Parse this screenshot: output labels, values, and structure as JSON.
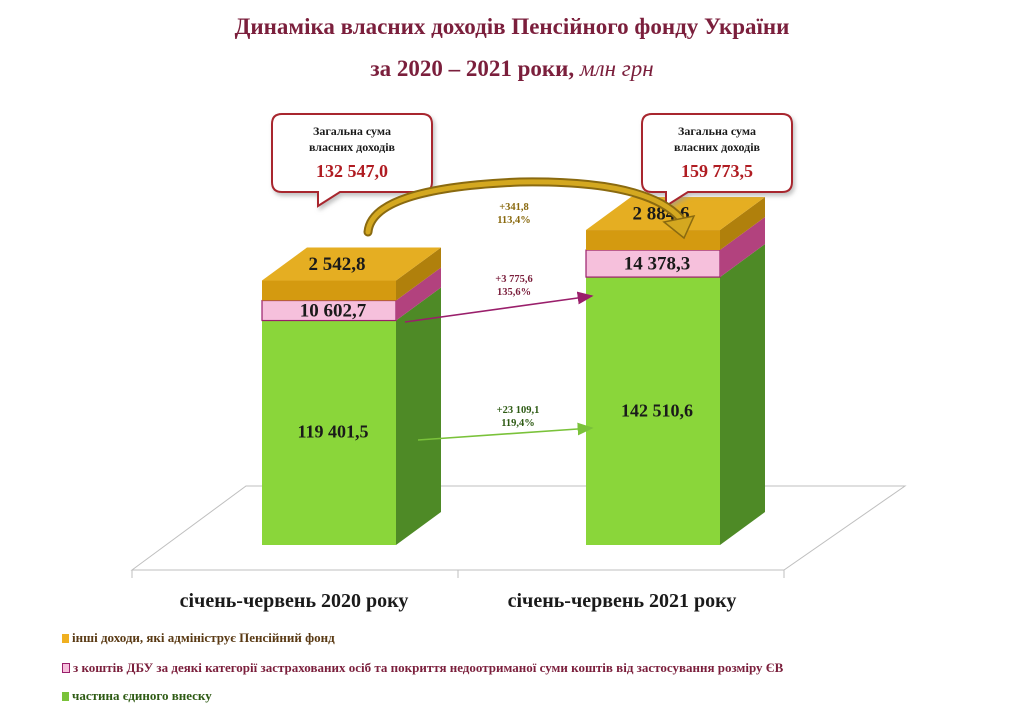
{
  "title": "Динаміка власних доходів Пенсійного фонду України",
  "subtitle_main": "за 2020 – 2021 роки,",
  "subtitle_unit": "млн грн",
  "chart_data": {
    "type": "bar",
    "stacked": true,
    "categories": [
      "січень-червень 2020 року",
      "січень-червень 2021 року"
    ],
    "series": [
      {
        "name": "частина єдиного внеску",
        "values": [
          119401.5,
          142510.6
        ],
        "labels": [
          "119 401,5",
          "142 510,6"
        ],
        "color": "#8ad63a"
      },
      {
        "name": "з коштів ДБУ за деякі категорії застрахованих осіб та покриття недоотриманої суми коштів  від застосування розміру  ЄВ",
        "values": [
          10602.7,
          14378.3
        ],
        "labels": [
          "10 602,7",
          "14 378,3"
        ],
        "color": "#f6c0dc"
      },
      {
        "name": "інші доходи, які адмініструє Пенсійний фонд",
        "values": [
          2542.8,
          2884.6
        ],
        "labels": [
          "2 542,8",
          "2 884,6"
        ],
        "color": "#d49a10"
      }
    ],
    "totals": [
      {
        "caption_line1": "Загальна сума",
        "caption_line2": "власних доходів",
        "value": "132 547,0"
      },
      {
        "caption_line1": "Загальна сума",
        "caption_line2": "власних доходів",
        "value": "159 773,5"
      }
    ],
    "changes": [
      {
        "series": "інші доходи, які адмініструє Пенсійний фонд",
        "abs": "+341,8",
        "pct": "113,4%"
      },
      {
        "series": "з коштів ДБУ",
        "abs": "+3 775,6",
        "pct": "135,6%"
      },
      {
        "series": "частина єдиного внеску",
        "abs": "+23 109,1",
        "pct": "119,4%"
      }
    ],
    "legend_position": "bottom-left",
    "grid": false
  }
}
